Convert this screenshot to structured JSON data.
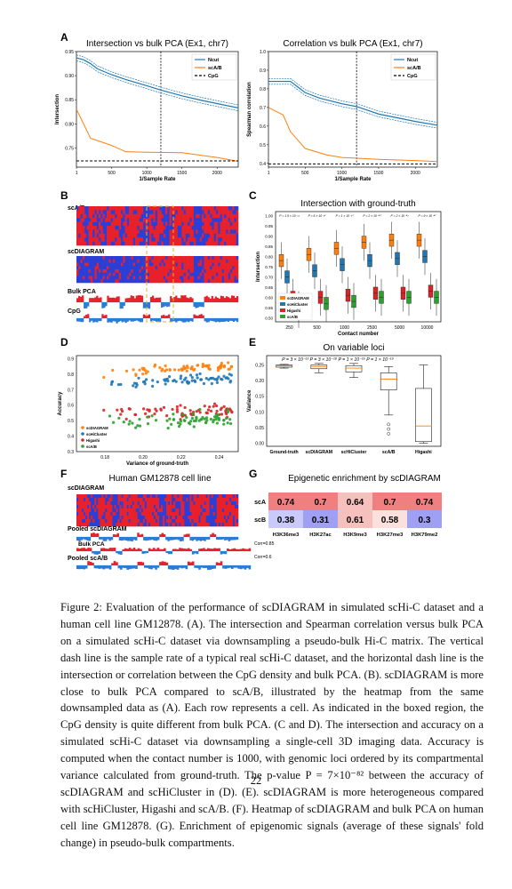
{
  "panels": {
    "A": {
      "letter": "A"
    },
    "B": {
      "letter": "B",
      "label_scab": "scA/B",
      "label_scdiagram": "scDIAGRAM",
      "label_bulkpca": "Bulk PCA",
      "label_cpg": "CpG"
    },
    "C": {
      "letter": "C"
    },
    "D": {
      "letter": "D"
    },
    "E": {
      "letter": "E"
    },
    "F": {
      "letter": "F",
      "title": "Human GM12878 cell line",
      "label_scdiagram": "scDIAGRAM",
      "label_pooled_scdiagram": "Pooled scDIAGRAM",
      "label_bulkpca": "Bulk PCA",
      "label_pooled_scab": "Pooled scA/B",
      "corr1": "Corr=0.85",
      "corr2": "Corr=0.6"
    },
    "G": {
      "letter": "G",
      "title": "Epigenetic enrichment by scDIAGRAM"
    }
  },
  "chart_data": [
    {
      "id": "A1",
      "type": "line",
      "title": "Intersection vs bulk PCA (Ex1, chr7)",
      "xlabel": "1/Sample Rate",
      "ylabel": "Intersection",
      "xlim": [
        0,
        2300
      ],
      "ylim": [
        0.71,
        0.95
      ],
      "xticks": [
        1,
        500,
        1000,
        1500,
        2000
      ],
      "yticks": [
        0.75,
        0.8,
        0.85,
        0.9,
        0.95
      ],
      "vline": 1200,
      "legend_position": "top-right",
      "series": [
        {
          "name": "Ncut",
          "color": "#1f77b4",
          "x": [
            1,
            100,
            200,
            300,
            500,
            700,
            1000,
            1200,
            1500,
            1800,
            2000,
            2300
          ],
          "y": [
            0.937,
            0.933,
            0.925,
            0.914,
            0.902,
            0.892,
            0.879,
            0.87,
            0.858,
            0.848,
            0.842,
            0.833
          ]
        },
        {
          "name": "scA/B",
          "color": "#ff7f0e",
          "x": [
            1,
            200,
            500,
            700,
            1000,
            1500,
            2000,
            2300
          ],
          "y": [
            0.83,
            0.77,
            0.755,
            0.742,
            0.741,
            0.74,
            0.73,
            0.722
          ]
        },
        {
          "name": "CpG",
          "color": "#000000",
          "dashed": true,
          "x": [
            1,
            2300
          ],
          "y": [
            0.723,
            0.723
          ]
        }
      ]
    },
    {
      "id": "A2",
      "type": "line",
      "title": "Correlation vs bulk PCA (Ex1, chr7)",
      "xlabel": "1/Sample Rate",
      "ylabel": "Spearman correlation",
      "xlim": [
        0,
        2300
      ],
      "ylim": [
        0.38,
        1.0
      ],
      "xticks": [
        1,
        500,
        1000,
        1500,
        2000
      ],
      "yticks": [
        0.4,
        0.5,
        0.6,
        0.7,
        0.8,
        0.9,
        1.0
      ],
      "vline": 1200,
      "legend_position": "top-right",
      "series": [
        {
          "name": "Ncut",
          "color": "#1f77b4",
          "x": [
            1,
            300,
            400,
            500,
            700,
            1000,
            1200,
            1500,
            2000,
            2300
          ],
          "y": [
            0.84,
            0.84,
            0.81,
            0.78,
            0.75,
            0.72,
            0.705,
            0.665,
            0.625,
            0.605
          ]
        },
        {
          "name": "scA/B",
          "color": "#ff7f0e",
          "x": [
            1,
            200,
            300,
            500,
            800,
            1000,
            1500,
            2000,
            2300
          ],
          "y": [
            0.7,
            0.66,
            0.57,
            0.48,
            0.445,
            0.432,
            0.422,
            0.415,
            0.41
          ]
        },
        {
          "name": "CpG",
          "color": "#000000",
          "dashed": true,
          "x": [
            1,
            2300
          ],
          "y": [
            0.397,
            0.397
          ]
        }
      ]
    },
    {
      "id": "C",
      "type": "box",
      "title": "Intersection with ground-truth",
      "xlabel": "Contact number",
      "ylabel": "Intersection",
      "categories": [
        "250",
        "500",
        "1000",
        "2500",
        "5000",
        "10000"
      ],
      "ylim": [
        0.48,
        1.02
      ],
      "yticks": [
        0.5,
        0.55,
        0.6,
        0.65,
        0.7,
        0.75,
        0.8,
        0.85,
        0.9,
        0.95,
        1.0
      ],
      "legend_position": "bottom-left",
      "pvalue_labels": [
        "P = 1.5 × 10⁻¹²",
        "P = 6 × 10⁻¹⁶",
        "P = 1 × 10⁻²⁰",
        "P = 2 × 10⁻⁴⁰",
        "P = 2 × 10⁻⁴³",
        "P = 9 × 10⁻⁴⁷"
      ],
      "series": [
        {
          "name": "scDIAGRAM",
          "color": "#ff7f0e",
          "medians": [
            0.78,
            0.81,
            0.84,
            0.87,
            0.88,
            0.88
          ]
        },
        {
          "name": "scHiCluster",
          "color": "#1f77b4",
          "medians": [
            0.7,
            0.73,
            0.76,
            0.78,
            0.79,
            0.8
          ]
        },
        {
          "name": "Higashi",
          "color": "#d62728",
          "medians": [
            0.6,
            0.6,
            0.61,
            0.62,
            0.62,
            0.63
          ]
        },
        {
          "name": "scA/B",
          "color": "#2ca02c",
          "medians": [
            0.54,
            0.57,
            0.58,
            0.6,
            0.6,
            0.6
          ]
        }
      ]
    },
    {
      "id": "D",
      "type": "scatter",
      "xlabel": "Variance of ground-truth",
      "ylabel": "Accuracy",
      "xlim": [
        0.165,
        0.25
      ],
      "ylim": [
        0.3,
        0.92
      ],
      "xticks": [
        0.18,
        0.2,
        0.22,
        0.24
      ],
      "yticks": [
        0.3,
        0.4,
        0.5,
        0.6,
        0.7,
        0.8,
        0.9
      ],
      "legend_position": "bottom-left",
      "series": [
        {
          "name": "scDIAGRAM",
          "color": "#ff7f0e",
          "center": 0.82
        },
        {
          "name": "scHiCluster",
          "color": "#1f77b4",
          "center": 0.75
        },
        {
          "name": "Higashi",
          "color": "#d62728",
          "center": 0.55
        },
        {
          "name": "scA/B",
          "color": "#2ca02c",
          "center": 0.5
        }
      ]
    },
    {
      "id": "E",
      "type": "box",
      "title": "On variable loci",
      "ylabel": "Variance",
      "categories": [
        "Ground-truth",
        "scDIAGRAM",
        "scHiCluster",
        "scA/B",
        "Higashi"
      ],
      "ylim": [
        -0.01,
        0.28
      ],
      "yticks": [
        0.0,
        0.05,
        0.1,
        0.15,
        0.2,
        0.25
      ],
      "annotation": "P = 3 × 10⁻¹³ P = 3 × 10⁻¹⁸ P = 1 × 10⁻¹⁵ P = 1 × 10⁻¹⁹",
      "boxes": [
        {
          "q1": 0.243,
          "median": 0.247,
          "q3": 0.25,
          "lo": 0.24,
          "hi": 0.252
        },
        {
          "q1": 0.238,
          "median": 0.245,
          "q3": 0.25,
          "lo": 0.225,
          "hi": 0.255
        },
        {
          "q1": 0.228,
          "median": 0.24,
          "q3": 0.248,
          "lo": 0.21,
          "hi": 0.255
        },
        {
          "q1": 0.17,
          "median": 0.205,
          "q3": 0.225,
          "lo": 0.09,
          "hi": 0.245,
          "outliers": [
            0.06,
            0.045,
            0.03
          ]
        },
        {
          "q1": 0.005,
          "median": 0.055,
          "q3": 0.175,
          "lo": 0.0,
          "hi": 0.25
        }
      ]
    },
    {
      "id": "G",
      "type": "heatmap",
      "title": "Epigenetic enrichment by scDIAGRAM",
      "rows": [
        "scA",
        "scB"
      ],
      "columns": [
        "H3K36me3",
        "H3K27ac",
        "H3K9me3",
        "H3K27me3",
        "H3K79me2"
      ],
      "values": [
        [
          "0.74",
          "0.7",
          "0.64",
          "0.7",
          "0.74"
        ],
        [
          "0.38",
          "0.31",
          "0.61",
          "0.58",
          "0.3"
        ]
      ]
    }
  ],
  "caption": "Figure 2: Evaluation of the performance of scDIAGRAM in simulated scHi-C dataset and a human cell line GM12878. (A). The intersection and Spearman correlation versus bulk PCA on a simulated scHi-C dataset via downsampling a pseudo-bulk Hi-C matrix. The vertical dash line is the sample rate of a typical real scHi-C dataset, and the horizontal dash line is the intersection or correlation between the CpG density and bulk PCA. (B). scDIAGRAM is more close to bulk PCA compared to scA/B, illustrated by the heatmap from the same downsampled data as (A). Each row represents a cell. As indicated in the boxed region, the CpG density is quite different from bulk PCA. (C and D). The intersection and accuracy on a simulated scHi-C dataset via downsampling a single-cell 3D imaging data. Accuracy is computed when the contact number is 1000, with genomic loci ordered by its compartmental variance calculated from ground-truth. The p-value P = 7×10⁻⁸² between the accuracy of scDIAGRAM and scHiCluster in (D). (E). scDIAGRAM is more heterogeneous compared with scHiCluster, Higashi and scA/B. (F). Heatmap of scDIAGRAM and bulk PCA on human cell line GM12878. (G). Enrichment of epigenomic signals (average of these signals' fold change) in pseudo-bulk compartments.",
  "page_number": "22"
}
